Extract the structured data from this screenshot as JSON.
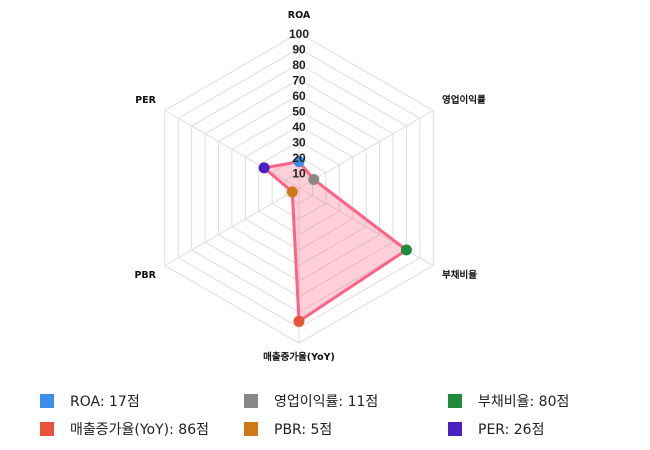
{
  "chart_data": {
    "type": "radar",
    "axes": [
      "ROA",
      "영업이익률",
      "부채비율",
      "매출증가율(YoY)",
      "PBR",
      "PER"
    ],
    "values": [
      17,
      11,
      80,
      86,
      5,
      26
    ],
    "point_colors": [
      "#3b8eea",
      "#888888",
      "#1e8c3a",
      "#e8533b",
      "#d07818",
      "#4a1fc4"
    ],
    "fill_color": "rgba(255,99,132,0.3)",
    "line_color": "#ff6384",
    "range": [
      0,
      100
    ],
    "ticks": [
      "10",
      "20",
      "30",
      "40",
      "50",
      "60",
      "70",
      "80",
      "90",
      "100"
    ],
    "grid": true,
    "legend_position": "bottom"
  },
  "legend": [
    {
      "label": "ROA: 17점",
      "color": "#3b8eea"
    },
    {
      "label": "영업이익률: 11점",
      "color": "#888888"
    },
    {
      "label": "부채비율: 80점",
      "color": "#1e8c3a"
    },
    {
      "label": "매출증가율(YoY): 86점",
      "color": "#e8533b"
    },
    {
      "label": "PBR: 5점",
      "color": "#d07818"
    },
    {
      "label": "PER: 26점",
      "color": "#4a1fc4"
    }
  ]
}
